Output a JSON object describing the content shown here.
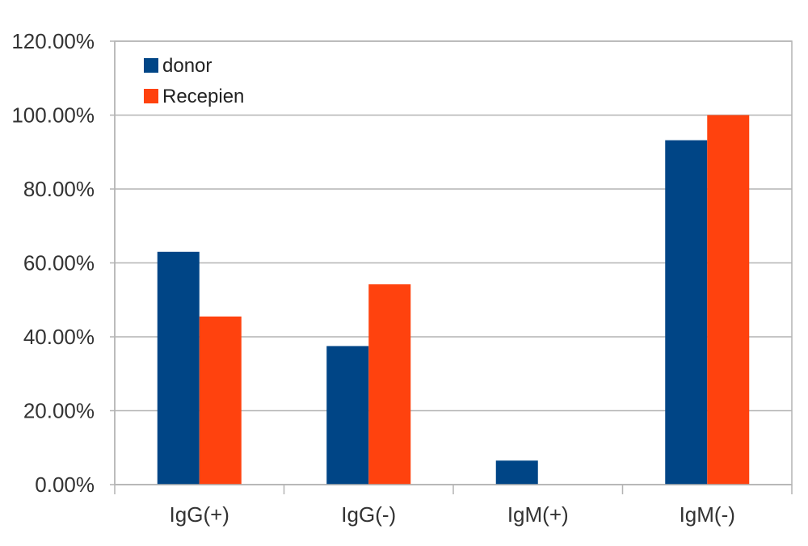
{
  "chart_data": {
    "type": "bar",
    "categories": [
      "IgG(+)",
      "IgG(-)",
      "IgM(+)",
      "IgM(-)"
    ],
    "series": [
      {
        "name": "donor",
        "color": "#004586",
        "values": [
          63.0,
          37.5,
          6.5,
          93.2
        ]
      },
      {
        "name": "Recepien",
        "color": "#ff420e",
        "values": [
          45.5,
          54.2,
          0,
          100.0
        ]
      }
    ],
    "ylim": [
      0,
      120
    ],
    "yticks": [
      0,
      20,
      40,
      60,
      80,
      100,
      120
    ],
    "ytick_labels": [
      "0.00%",
      "20.00%",
      "40.00%",
      "60.00%",
      "80.00%",
      "100.00%",
      "120.00%"
    ],
    "title": "",
    "xlabel": "",
    "ylabel": "",
    "grid": true,
    "legend_position": "top-left"
  }
}
